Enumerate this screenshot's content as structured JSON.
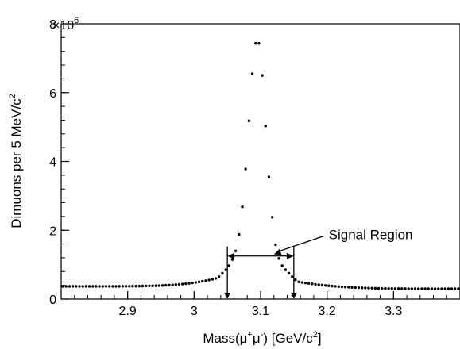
{
  "chart_data": {
    "type": "scatter",
    "title": "",
    "xlabel": {
      "prefix": "Mass(μ",
      "sup1": "+",
      "mid": "μ",
      "sup2": "-",
      "suffix": ")  [GeV/c",
      "sup3": "2",
      "end": "]"
    },
    "ylabel": {
      "main": "Dimuons per 5 MeV/c",
      "sup": "2"
    },
    "xlim": [
      2.8,
      3.4
    ],
    "ylim": [
      0,
      8
    ],
    "y_multiplier": {
      "base": "×10",
      "exp": "6"
    },
    "x_ticks": [
      2.9,
      3.0,
      3.1,
      3.2,
      3.3
    ],
    "x_tick_labels": [
      "2.9",
      "3",
      "3.1",
      "3.2",
      "3.3"
    ],
    "y_ticks": [
      0,
      2,
      4,
      6,
      8
    ],
    "y_tick_labels": [
      "0",
      "2",
      "4",
      "6",
      "8"
    ],
    "grid": false,
    "point_color": "#000000",
    "series": [
      {
        "x": [
          3.0375,
          3.0425,
          3.0475,
          3.0525,
          3.0575,
          3.0625,
          3.0675,
          3.0725,
          3.0775,
          3.0825,
          3.0875,
          3.0925,
          3.0975,
          3.1025,
          3.1075,
          3.1125,
          3.1175,
          3.1225,
          3.1275,
          3.1325,
          3.1375,
          3.1425,
          3.1475,
          3.1525
        ],
        "y": [
          0.65,
          0.75,
          0.85,
          0.97,
          1.15,
          1.4,
          1.88,
          2.68,
          3.78,
          5.18,
          6.55,
          7.43,
          7.43,
          6.5,
          5.03,
          3.55,
          2.38,
          1.58,
          1.18,
          0.97,
          0.85,
          0.75,
          0.65,
          0.56
        ]
      }
    ],
    "background": {
      "left": {
        "x_start": 2.8025,
        "x_end": 3.0325,
        "y_start": 0.37,
        "y_end": 0.6
      },
      "right": {
        "x_start": 3.1575,
        "x_end": 3.3975,
        "y_start": 0.5,
        "y_end": 0.3
      }
    },
    "signal_region": {
      "x_min": 3.05,
      "x_max": 3.15,
      "y": 1.25
    },
    "annotation": {
      "text": "Signal Region",
      "x": 3.2,
      "y": 1.88,
      "arrow_to_x": 3.12,
      "arrow_to_y": 1.3
    }
  }
}
